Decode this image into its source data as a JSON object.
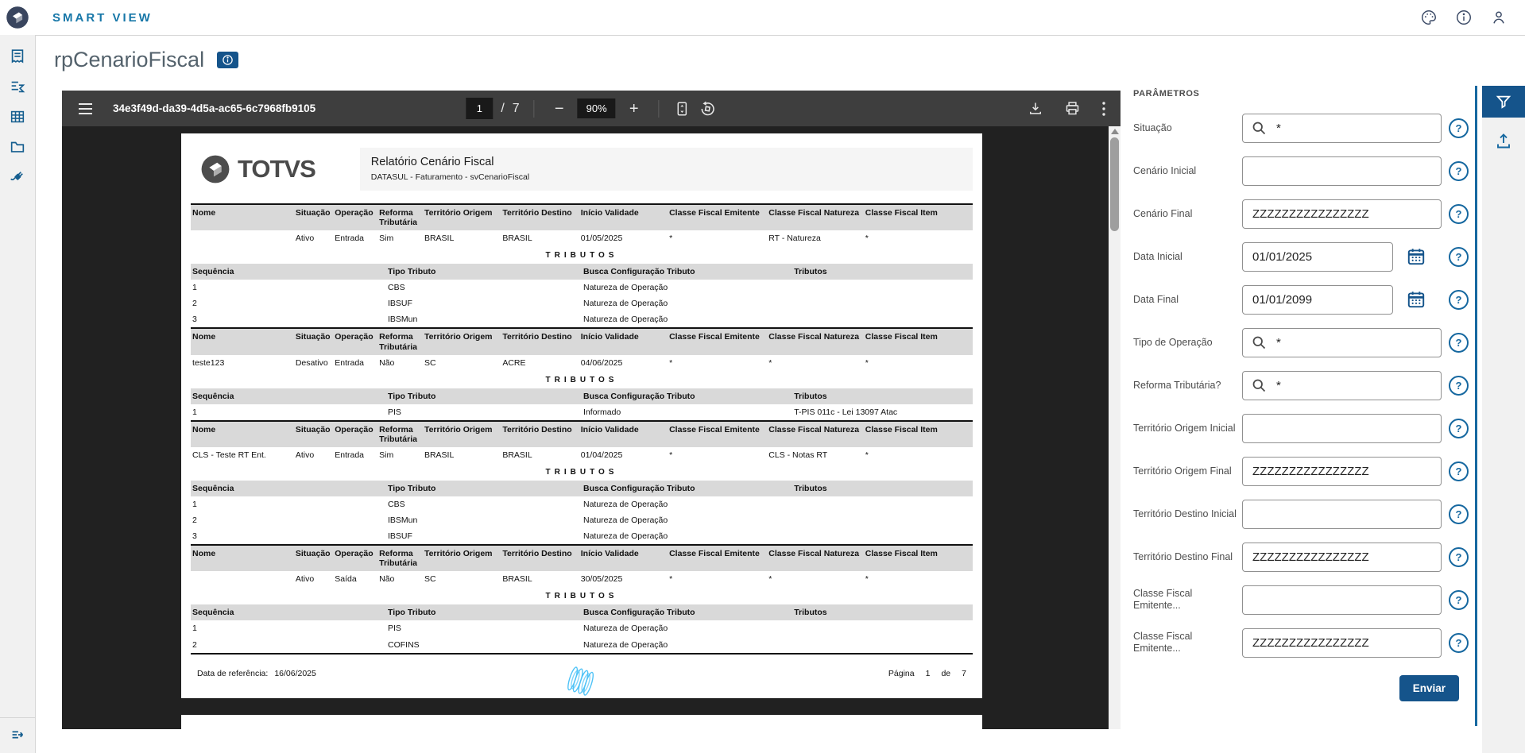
{
  "topbar": {
    "brand": "SMART VIEW",
    "icons": [
      "theme-palette",
      "info",
      "user-profile"
    ]
  },
  "sidebar": {
    "icons": [
      "report-receipt",
      "summary-sigma",
      "table-grid",
      "folder",
      "plug-connector"
    ],
    "bottom_icon": "expand-menu"
  },
  "page": {
    "title": "rpCenarioFiscal",
    "badge_icon": "info"
  },
  "viewer": {
    "document_id": "34e3f49d-da39-4d5a-ac65-6c7968fb9105",
    "current_page": "1",
    "page_separator": "/",
    "total_pages": "7",
    "zoom_level": "90%",
    "toolbar_icons": [
      "menu",
      "zoom-out",
      "zoom-in",
      "fit-page",
      "rotate",
      "download",
      "print",
      "more-options"
    ]
  },
  "report": {
    "logo_text": "TOTVS",
    "title": "Relatório Cenário Fiscal",
    "subtitle": "DATASUL - Faturamento - svCenarioFiscal",
    "columns": [
      "Nome",
      "Situação",
      "Operação",
      "Reforma Tributária",
      "Território Origem",
      "Território Destino",
      "Início Validade",
      "Classe Fiscal Emitente",
      "Classe Fiscal Natureza",
      "Classe Fiscal Item"
    ],
    "tributos_label": "TRIBUTOS",
    "sub_columns": [
      "Sequência",
      "Tipo Tributo",
      "Busca Configuração Tributo",
      "Tributos"
    ],
    "sections": [
      {
        "row": [
          "",
          "Ativo",
          "Entrada",
          "Sim",
          "BRASIL",
          "BRASIL",
          "01/05/2025",
          "*",
          "RT - Natureza",
          "*"
        ],
        "tributos": [
          [
            "1",
            "CBS",
            "Natureza de Operação",
            ""
          ],
          [
            "2",
            "IBSUF",
            "Natureza de Operação",
            ""
          ],
          [
            "3",
            "IBSMun",
            "Natureza de Operação",
            ""
          ]
        ]
      },
      {
        "row": [
          "teste123",
          "Desativo",
          "Entrada",
          "Não",
          "SC",
          "ACRE",
          "04/06/2025",
          "*",
          "*",
          "*"
        ],
        "tributos": [
          [
            "1",
            "PIS",
            "Informado",
            "T-PIS 011c - Lei 13097 Atac"
          ]
        ]
      },
      {
        "row": [
          "CLS - Teste RT Ent.",
          "Ativo",
          "Entrada",
          "Sim",
          "BRASIL",
          "BRASIL",
          "01/04/2025",
          "*",
          "CLS - Notas RT",
          "*"
        ],
        "tributos": [
          [
            "1",
            "CBS",
            "Natureza de Operação",
            ""
          ],
          [
            "2",
            "IBSMun",
            "Natureza de Operação",
            ""
          ],
          [
            "3",
            "IBSUF",
            "Natureza de Operação",
            ""
          ]
        ]
      },
      {
        "row": [
          "",
          "Ativo",
          "Saída",
          "Não",
          "SC",
          "BRASIL",
          "30/05/2025",
          "*",
          "*",
          "*"
        ],
        "tributos": [
          [
            "1",
            "PIS",
            "Natureza de Operação",
            ""
          ],
          [
            "2",
            "COFINS",
            "Natureza de Operação",
            ""
          ]
        ]
      }
    ],
    "footer": {
      "reference_label": "Data de referência:",
      "reference_date": "16/06/2025",
      "page_label": "Página",
      "page_number": "1",
      "of_label": "de",
      "total_pages": "7"
    }
  },
  "parameters": {
    "title": "PARÂMETROS",
    "fields": [
      {
        "label": "Situação",
        "type": "search",
        "value": "*"
      },
      {
        "label": "Cenário Inicial",
        "type": "text",
        "value": ""
      },
      {
        "label": "Cenário Final",
        "type": "text",
        "value": "ZZZZZZZZZZZZZZZZ"
      },
      {
        "label": "Data Inicial",
        "type": "date",
        "value": "01/01/2025"
      },
      {
        "label": "Data Final",
        "type": "date",
        "value": "01/01/2099"
      },
      {
        "label": "Tipo de Operação",
        "type": "search",
        "value": "*"
      },
      {
        "label": "Reforma Tributária?",
        "type": "search",
        "value": "*"
      },
      {
        "label": "Território Origem Inicial",
        "type": "text",
        "value": ""
      },
      {
        "label": "Território Origem Final",
        "type": "text",
        "value": "ZZZZZZZZZZZZZZZZ"
      },
      {
        "label": "Território Destino Inicial",
        "type": "text",
        "value": ""
      },
      {
        "label": "Território Destino Final",
        "type": "text",
        "value": "ZZZZZZZZZZZZZZZZ"
      },
      {
        "label": "Classe Fiscal Emitente...",
        "type": "text",
        "value": ""
      },
      {
        "label": "Classe Fiscal Emitente...",
        "type": "text",
        "value": "ZZZZZZZZZZZZZZZZ"
      }
    ],
    "submit_label": "Enviar",
    "side_icons": [
      "filter-funnel",
      "upload"
    ]
  },
  "colors": {
    "accent_blue": "#15548b",
    "icon_blue": "#155e8f",
    "brand_teal": "#1777a8",
    "toolbar_dark": "#3e3e3e",
    "viewer_dark": "#212121",
    "table_header_gray": "#d9d9d9",
    "watermark_blue": "#4fc3f7"
  }
}
